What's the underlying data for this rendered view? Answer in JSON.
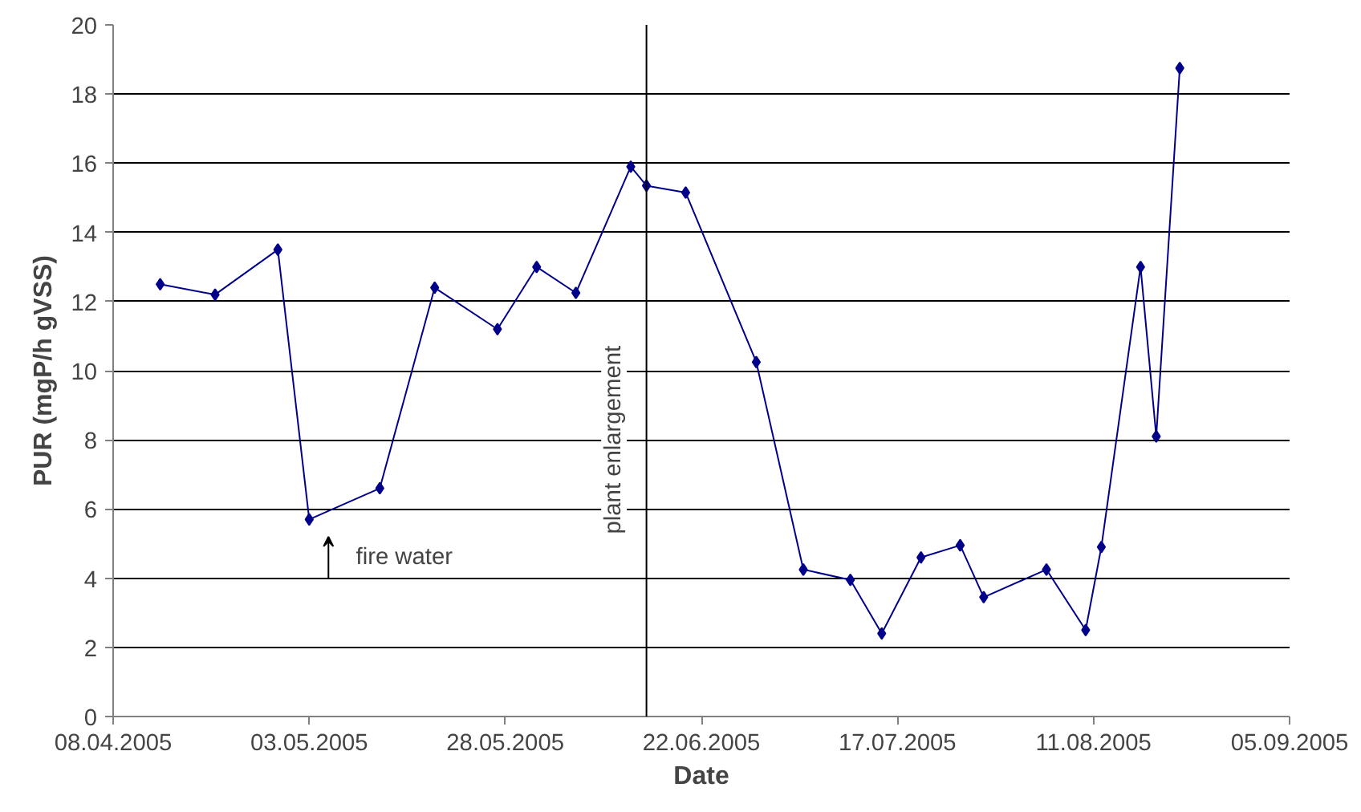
{
  "chart_data": {
    "type": "line",
    "xlabel": "Date",
    "ylabel": "PUR (mgP/h gVSS)",
    "x": [
      "2005-04-14",
      "2005-04-21",
      "2005-04-29",
      "2005-05-03",
      "2005-05-12",
      "2005-05-19",
      "2005-05-27",
      "2005-06-01",
      "2005-06-06",
      "2005-06-13",
      "2005-06-15",
      "2005-06-20",
      "2005-06-29",
      "2005-07-05",
      "2005-07-11",
      "2005-07-15",
      "2005-07-20",
      "2005-07-25",
      "2005-07-28",
      "2005-08-05",
      "2005-08-10",
      "2005-08-12",
      "2005-08-17",
      "2005-08-19",
      "2005-08-22"
    ],
    "series": [
      {
        "color": "#00008b",
        "values": [
          12.5,
          12.2,
          13.5,
          5.7,
          6.6,
          12.4,
          11.2,
          13.0,
          12.25,
          15.9,
          15.35,
          15.15,
          10.25,
          4.25,
          3.95,
          2.4,
          4.6,
          4.95,
          3.45,
          4.25,
          2.5,
          4.9,
          13.0,
          8.1,
          18.75
        ]
      }
    ],
    "xlim": [
      "2005-04-08",
      "2005-09-05"
    ],
    "xticks": [
      {
        "value": "2005-04-08",
        "label": "08.04.2005"
      },
      {
        "value": "2005-05-03",
        "label": "03.05.2005"
      },
      {
        "value": "2005-05-28",
        "label": "28.05.2005"
      },
      {
        "value": "2005-06-22",
        "label": "22.06.2005"
      },
      {
        "value": "2005-07-17",
        "label": "17.07.2005"
      },
      {
        "value": "2005-08-11",
        "label": "11.08.2005"
      },
      {
        "value": "2005-09-05",
        "label": "05.09.2005"
      }
    ],
    "ylim": [
      0,
      20
    ],
    "yticks": [
      0,
      2,
      4,
      6,
      8,
      10,
      12,
      14,
      16,
      18,
      20
    ],
    "grid": "y",
    "marker": "diamond",
    "line_style": "solid",
    "ref_lines": [
      {
        "axis": "x",
        "value": "2005-06-15",
        "label": "plant enlargement",
        "color": "#000000"
      }
    ],
    "annotations": [
      "fire water"
    ]
  }
}
